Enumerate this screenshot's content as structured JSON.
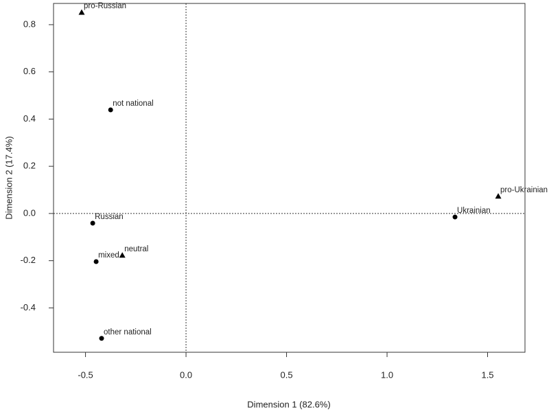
{
  "chart_data": {
    "type": "scatter",
    "x_label": "Dimension 1 (82.6%)",
    "y_label": "Dimension 2 (17.4%)",
    "xlim": [
      -0.659,
      1.686
    ],
    "ylim": [
      -0.588,
      0.89
    ],
    "xticks": [
      -0.5,
      {
        "value": 0,
        "label": "0.0"
      },
      0.5,
      {
        "value": 1,
        "label": "1.0"
      },
      1.5
    ],
    "yticks": [
      -0.4,
      -0.2,
      {
        "value": 0,
        "label": "0.0"
      },
      0.2,
      0.4,
      0.6,
      0.8
    ],
    "hline": 0,
    "vline": 0,
    "grid": false,
    "series": [
      {
        "marker": "circle",
        "color": "#000000",
        "labels": [
          "not national",
          "Russian",
          "mixed",
          "other national",
          "Ukrainian"
        ],
        "x": [
          -0.375,
          -0.464,
          -0.447,
          -0.42,
          1.338
        ],
        "values": [
          0.439,
          -0.041,
          -0.204,
          -0.529,
          -0.015
        ]
      },
      {
        "marker": "triangle",
        "color": "#000000",
        "labels": [
          "pro-Russian",
          "neutral",
          "pro-Ukrainian"
        ],
        "x": [
          -0.519,
          -0.317,
          1.553
        ],
        "values": [
          0.852,
          -0.177,
          0.073
        ]
      }
    ]
  }
}
